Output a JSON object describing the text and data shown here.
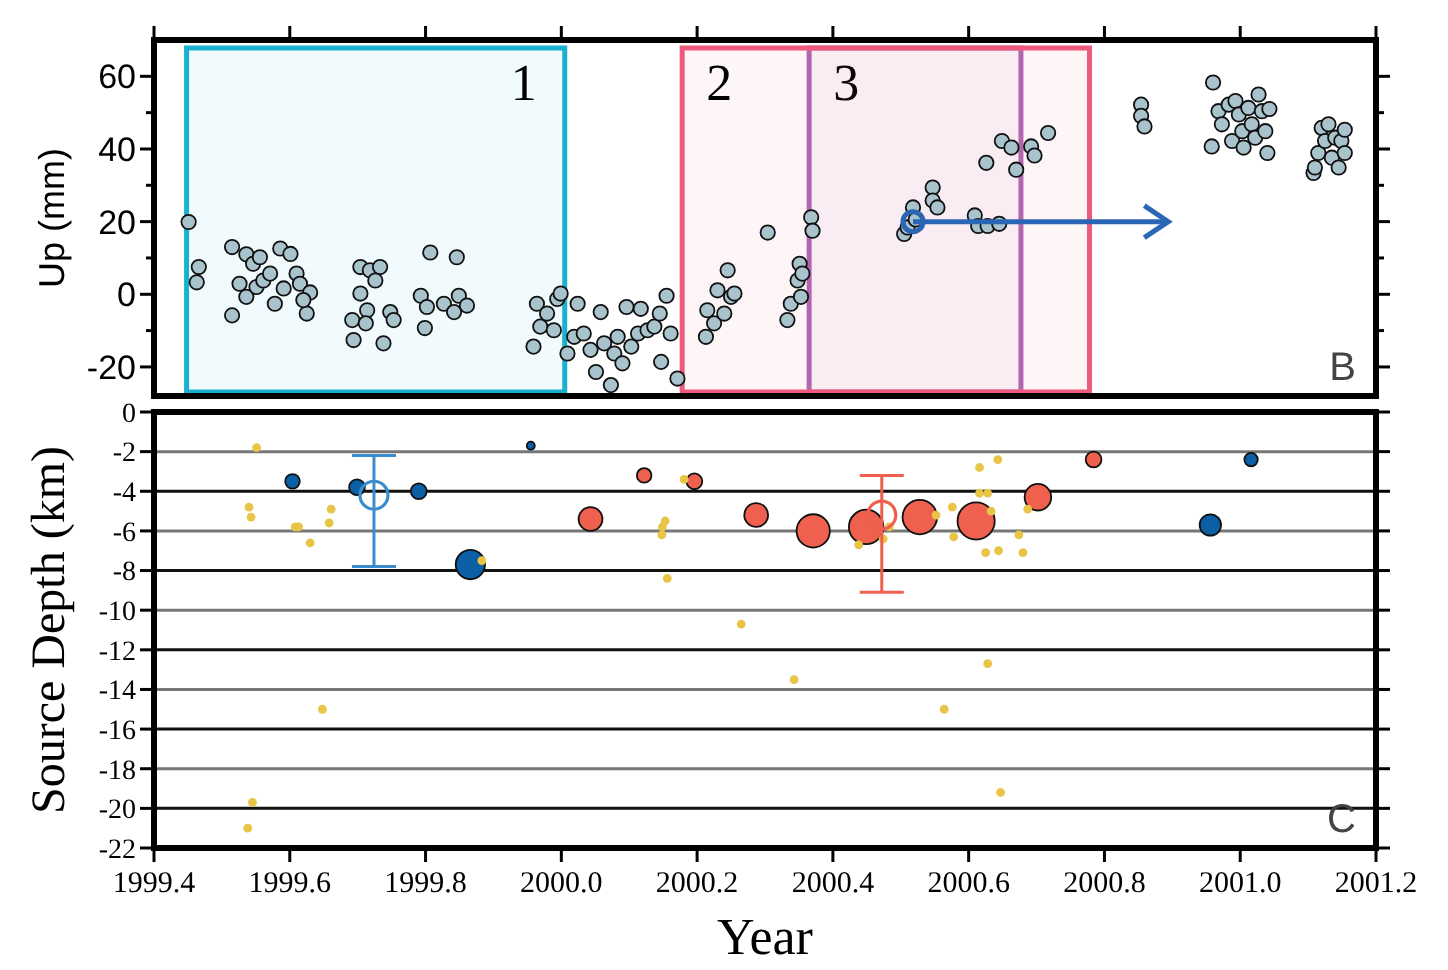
{
  "chart_data": [
    {
      "type": "scatter",
      "ylabel": "Up (mm)",
      "xlim": [
        1999.4,
        2001.2
      ],
      "ylim": [
        -28,
        70
      ],
      "xticks": [
        {
          "value": 1999.4,
          "label": null
        },
        {
          "value": 1999.6,
          "label": null
        },
        {
          "value": 1999.8,
          "label": null
        },
        {
          "value": 2000.0,
          "label": null
        },
        {
          "value": 2000.2,
          "label": null
        },
        {
          "value": 2000.4,
          "label": null
        },
        {
          "value": 2000.6,
          "label": null
        },
        {
          "value": 2000.8,
          "label": null
        },
        {
          "value": 2001.0,
          "label": null
        },
        {
          "value": 2001.2,
          "label": null
        }
      ],
      "yticks": [
        -20,
        {
          "value": -10,
          "label": null
        },
        0,
        {
          "value": 10,
          "label": null
        },
        20,
        {
          "value": 30,
          "label": null
        },
        40,
        {
          "value": 50,
          "label": null
        },
        60
      ],
      "tick_labels": "y",
      "marker": "circle",
      "series": [
        {
          "color": "#a9c3cd",
          "x": [
            1999.451,
            1999.466,
            1999.463,
            1999.515,
            1999.515,
            1999.526,
            1999.536,
            1999.546,
            1999.556,
            1999.536,
            1999.551,
            1999.561,
            1999.571,
            1999.586,
            1999.601,
            1999.578,
            1999.591,
            1999.61,
            1999.615,
            1999.63,
            1999.625,
            1999.62,
            1999.692,
            1999.694,
            1999.704,
            1999.718,
            1999.733,
            1999.704,
            1999.714,
            1999.726,
            1999.712,
            1999.738,
            1999.748,
            1999.753,
            1999.793,
            1999.802,
            1999.799,
            1999.807,
            1999.827,
            1999.846,
            1999.842,
            1999.849,
            1999.861,
            1999.964,
            1999.959,
            1999.969,
            1999.979,
            1999.989,
            1999.994,
            1999.999,
            2000.009,
            2000.024,
            2000.019,
            2000.033,
            2000.043,
            2000.051,
            2000.058,
            2000.063,
            2000.073,
            2000.078,
            2000.083,
            2000.09,
            2000.096,
            2000.103,
            2000.113,
            2000.117,
            2000.127,
            2000.137,
            2000.145,
            2000.147,
            2000.155,
            2000.161,
            2000.171,
            2000.213,
            2000.215,
            2000.225,
            2000.23,
            2000.24,
            2000.245,
            2000.25,
            2000.255,
            2000.304,
            2000.333,
            2000.338,
            2000.348,
            2000.351,
            2000.353,
            2000.355,
            2000.368,
            2000.37,
            2000.505,
            2000.51,
            2000.518,
            2000.522,
            2000.547,
            2000.547,
            2000.554,
            2000.609,
            2000.614,
            2000.628,
            2000.645,
            2000.626,
            2000.649,
            2000.663,
            2000.67,
            2000.692,
            2000.697,
            2000.717,
            2000.854,
            2000.854,
            2000.859,
            2000.96,
            2000.958,
            2000.968,
            2000.973,
            2000.983,
            2000.993,
            2000.988,
            2000.998,
            2001.003,
            2001.005,
            2001.012,
            2001.017,
            2001.022,
            2001.027,
            2001.032,
            2001.037,
            2001.04,
            2001.043,
            2001.108,
            2001.11,
            2001.115,
            2001.12,
            2001.125,
            2001.13,
            2001.135,
            2001.14,
            2001.145,
            2001.149,
            2001.154,
            2001.154
          ],
          "values": [
            19.9,
            7.5,
            3.3,
            13,
            -5.8,
            2.9,
            11,
            8.4,
            10.2,
            -0.7,
            2,
            3.8,
            5.7,
            12.6,
            11.1,
            -2.6,
            1.6,
            5.7,
            2.9,
            0.5,
            -5.3,
            -1.6,
            -7.1,
            -12.6,
            7.5,
            6.6,
            7.5,
            0.2,
            -4.4,
            3.8,
            -8,
            -13.5,
            -4.9,
            -7.1,
            -0.4,
            -3.5,
            -9.3,
            11.5,
            -2.6,
            10.2,
            -4.9,
            -0.4,
            -3.1,
            -2.6,
            -14.4,
            -8.9,
            -5.3,
            -9.9,
            -1.3,
            0.2,
            -16.3,
            -2.6,
            -11.7,
            -10.8,
            -15.3,
            -21.4,
            -4.9,
            -13.5,
            -25,
            -16.3,
            -11.7,
            -19,
            -3.5,
            -14.4,
            -10.8,
            -4,
            -9.9,
            -8.9,
            -5.3,
            -18.6,
            -0.4,
            -10.8,
            -23.2,
            -11.7,
            -4.4,
            -8,
            1.1,
            -5.3,
            6.6,
            -0.7,
            0.2,
            17,
            -7.1,
            -2.6,
            3.8,
            8.4,
            -0.7,
            5.7,
            21.2,
            17.5,
            16.6,
            18.4,
            23.9,
            20.6,
            29.4,
            25.8,
            23.9,
            21.7,
            18.8,
            18.8,
            19.4,
            36.2,
            42.2,
            40.4,
            34.3,
            40.7,
            38.2,
            44.4,
            52.2,
            49.1,
            46.2,
            58.3,
            40.7,
            50.4,
            46.8,
            52.2,
            53.2,
            42.2,
            49.5,
            44.9,
            40.4,
            51.3,
            46.8,
            43.1,
            55,
            50.4,
            44.9,
            38.9,
            51,
            33.4,
            34.9,
            38.9,
            45.8,
            42.2,
            46.8,
            37.6,
            43.1,
            34.9,
            42.2,
            45.3,
            38.9
          ]
        }
      ],
      "bands": [
        {
          "axis": "x",
          "from": 1999.448,
          "to": 2000.005,
          "label": "1",
          "color": "#19b0d2"
        },
        {
          "axis": "x",
          "from": 2000.365,
          "to": 2000.677,
          "label": "3",
          "color": "#b068b4"
        },
        {
          "axis": "x",
          "from": 2000.178,
          "to": 2000.778,
          "label": "2",
          "color": "#ee5a7c"
        }
      ],
      "annotations": [
        "B"
      ]
    },
    {
      "type": "bubble",
      "xlabel": "Year",
      "ylabel": "Source Depth (km)",
      "xlim": [
        1999.4,
        2001.2
      ],
      "ylim": [
        -22,
        0
      ],
      "xticks": [
        1999.4,
        1999.6,
        1999.8,
        {
          "value": 2000.0,
          "label": "2000.0"
        },
        2000.2,
        2000.4,
        2000.6,
        2000.8,
        {
          "value": 2001.0,
          "label": "2001.0"
        },
        2001.2
      ],
      "yticks": [
        0,
        -2,
        -4,
        -6,
        -8,
        -10,
        -12,
        -14,
        -16,
        -18,
        -20,
        -22
      ],
      "grid": "y",
      "series": [
        {
          "type": "bubble",
          "color": "#0b5fa5",
          "x": [
            1999.604,
            1999.699,
            1999.79,
            1999.866,
            1999.955,
            2000.956,
            2001.016
          ],
          "values": [
            -3.5,
            -3.8,
            -4.0,
            -7.7,
            -1.7,
            -5.7,
            -2.4
          ],
          "sizes": [
            0.154,
            0.18,
            0.18,
            0.62,
            0.046,
            0.33,
            0.13
          ]
        },
        {
          "type": "bubble",
          "color": "#f0604f",
          "x": [
            2000.043,
            2000.122,
            2000.196,
            2000.287,
            2000.371,
            2000.449,
            2000.528,
            2000.611,
            2000.702,
            2000.784
          ],
          "values": [
            -5.4,
            -3.2,
            -3.5,
            -5.2,
            -6.0,
            -5.8,
            -5.3,
            -5.5,
            -4.3,
            -2.4
          ],
          "sizes": [
            0.41,
            0.154,
            0.18,
            0.41,
            0.8,
            0.86,
            0.86,
            1,
            0.51,
            0.18
          ]
        },
        {
          "type": "scatter",
          "color": "#e8c547",
          "x": [
            1999.551,
            1999.54,
            1999.543,
            1999.608,
            1999.613,
            1999.63,
            1999.658,
            1999.661,
            1999.648,
            1999.545,
            1999.538,
            1999.883,
            2000.181,
            2000.153,
            2000.149,
            2000.148,
            2000.156,
            2000.265,
            2000.343,
            2000.438,
            2000.474,
            2000.483,
            2000.552,
            2000.564,
            2000.576,
            2000.578,
            2000.616,
            2000.616,
            2000.628,
            2000.633,
            2000.628,
            2000.625,
            2000.643,
            2000.644,
            2000.647,
            2000.674,
            2000.68,
            2000.687
          ],
          "values": [
            -1.8,
            -4.8,
            -5.3,
            -5.8,
            -5.8,
            -6.6,
            -5.6,
            -4.9,
            -15,
            -19.7,
            -21,
            -7.5,
            -3.4,
            -5.5,
            -5.8,
            -6.2,
            -8.4,
            -10.7,
            -13.5,
            -6.7,
            -6.4,
            -5.8,
            -5.2,
            -15,
            -4.8,
            -6.3,
            -2.8,
            -4.1,
            -4.1,
            -5.0,
            -12.7,
            -7.1,
            -2.4,
            -7.0,
            -19.2,
            -6.2,
            -7.1,
            -4.9
          ]
        },
        {
          "type": "scatter",
          "color": "#3a8ccc",
          "x": [
            1999.724
          ],
          "values": [
            -4.2
          ],
          "errors": [
            [
              -7.8,
              -2.2
            ]
          ]
        },
        {
          "type": "scatter",
          "color": "#f0604f",
          "x": [
            2000.472
          ],
          "values": [
            -5.2
          ],
          "errors": [
            [
              -9.1,
              -3.2
            ]
          ]
        }
      ],
      "annotations": [
        "C"
      ]
    }
  ]
}
